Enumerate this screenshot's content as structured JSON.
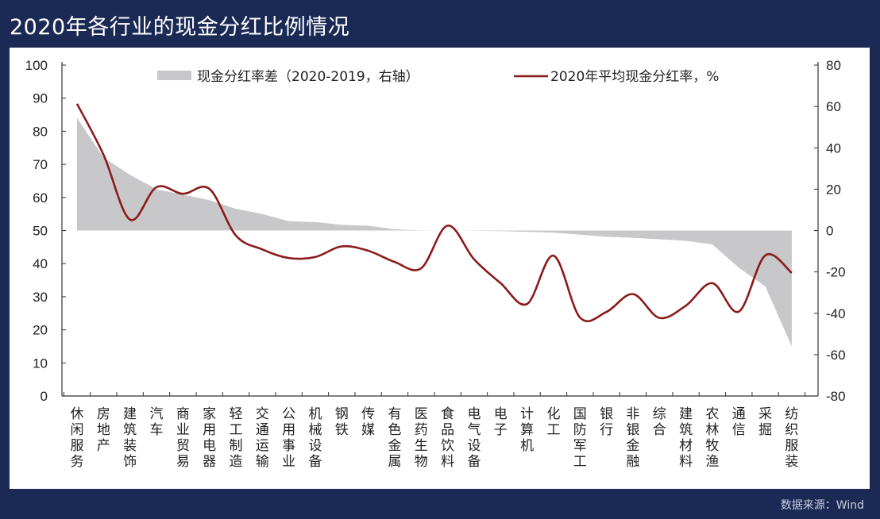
{
  "title": "2020年各行业的现金分红比例情况",
  "source": "数据来源：Wind",
  "chart_data": {
    "type": "line+area",
    "categories": [
      "休闲服务",
      "房地产",
      "建筑装饰",
      "汽车",
      "商业贸易",
      "家用电器",
      "轻工制造",
      "交通运输",
      "公用事业",
      "机械设备",
      "钢铁",
      "传媒",
      "有色金属",
      "医药生物",
      "食品饮料",
      "电气设备",
      "电子",
      "计算机",
      "化工",
      "国防军工",
      "银行",
      "非银金融",
      "综合",
      "建筑材料",
      "农林牧渔",
      "通信",
      "采掘",
      "纺织服装"
    ],
    "series": [
      {
        "name": "现金分红率差（2020-2019，右轴）",
        "type": "area",
        "axis": "right",
        "color": "#c8c8ca",
        "values": [
          54.5,
          35.3,
          26.9,
          20,
          17.3,
          14.7,
          10.5,
          8,
          4.5,
          4.1,
          2.8,
          2.3,
          0.6,
          0.1,
          0,
          -0.1,
          -0.3,
          -0.6,
          -1,
          -2,
          -3,
          -3.5,
          -4.2,
          -5,
          -6.7,
          -18,
          -27,
          -56
        ]
      },
      {
        "name": "2020年平均现金分红率，%",
        "type": "line",
        "axis": "left",
        "color": "#8b1a1a",
        "values": [
          88.3,
          72.9,
          53.3,
          63.1,
          61.1,
          62.6,
          48.5,
          44.3,
          41.7,
          42,
          45.2,
          43.9,
          40.5,
          38.6,
          51.5,
          41.3,
          34.1,
          27.8,
          42.4,
          23.7,
          25.4,
          30.8,
          23.6,
          27.3,
          34.1,
          25.5,
          42.5,
          37.2
        ]
      }
    ],
    "y_left": {
      "range": [
        0,
        100
      ],
      "ticks": [
        "0",
        "10",
        "20",
        "30",
        "40",
        "50",
        "60",
        "70",
        "80",
        "90",
        "100"
      ]
    },
    "y_right": {
      "range": [
        -80,
        80
      ],
      "ticks": [
        "-80",
        "-60",
        "-40",
        "-20",
        "0",
        "20",
        "40",
        "60",
        "80"
      ]
    },
    "legend": "top",
    "grid": false
  }
}
